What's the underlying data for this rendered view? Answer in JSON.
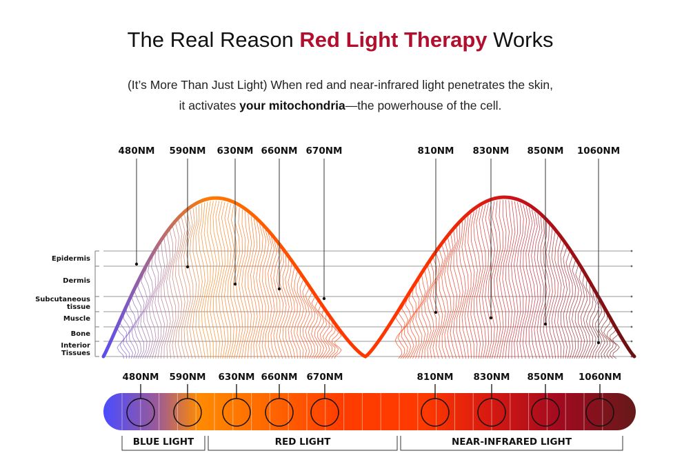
{
  "header": {
    "title_pre": "The Real Reason ",
    "title_accent": "Red Light Therapy",
    "title_post": " Works",
    "subtitle_line1": "(It’s More Than Just Light) When red and near-infrared light penetrates the skin,",
    "subtitle_line2_pre": "it activates ",
    "subtitle_line2_bold": "your mitochondria",
    "subtitle_line2_post": "—the powerhouse of the cell."
  },
  "colors": {
    "accent": "#b0102e",
    "blue": "#5a4df0",
    "orange": "#ff7a00",
    "red": "#ff3a00",
    "dark_red": "#7a1010"
  },
  "diagram": {
    "skin_layers": [
      "Epidermis",
      "Dermis",
      "Subcutaneous tissue",
      "Muscle",
      "Bone",
      "Interior Tissues"
    ],
    "top_wavelengths": [
      "480NM",
      "590NM",
      "630NM",
      "660NM",
      "670NM",
      "810NM",
      "830NM",
      "850NM",
      "1060NM"
    ],
    "bar_wavelengths": [
      "480NM",
      "590NM",
      "630NM",
      "660NM",
      "670NM",
      "810NM",
      "830NM",
      "850NM",
      "1060NM"
    ],
    "categories": [
      "BLUE LIGHT",
      "RED LIGHT",
      "NEAR-INFRARED LIGHT"
    ]
  }
}
